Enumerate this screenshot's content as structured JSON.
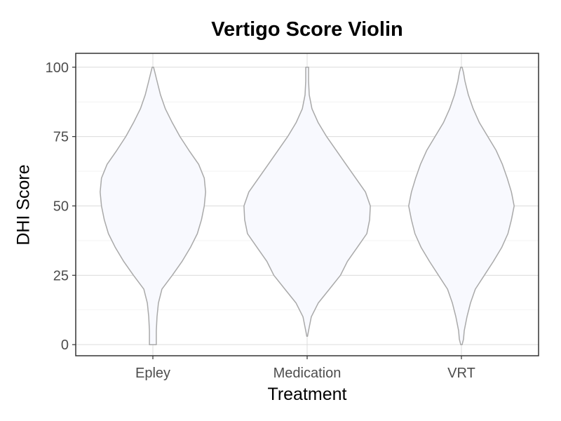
{
  "chart_data": {
    "type": "violin",
    "title": "Vertigo Score Violin",
    "xlabel": "Treatment",
    "ylabel": "DHI Score",
    "ylim": [
      -4,
      105
    ],
    "yticks": [
      0,
      25,
      50,
      75,
      100
    ],
    "grid": true,
    "categories": [
      "Epley",
      "Medication",
      "VRT"
    ],
    "fill_color": "#f8f9fe",
    "outline_color": "#a9a9a9",
    "violins": [
      {
        "category": "Epley",
        "y": [
          0,
          2,
          5,
          10,
          15,
          20,
          25,
          30,
          35,
          40,
          45,
          50,
          55,
          60,
          65,
          70,
          75,
          80,
          85,
          90,
          95,
          98,
          100
        ],
        "half_width": [
          0.05,
          0.05,
          0.05,
          0.06,
          0.08,
          0.13,
          0.28,
          0.42,
          0.54,
          0.64,
          0.7,
          0.74,
          0.76,
          0.74,
          0.66,
          0.52,
          0.39,
          0.28,
          0.18,
          0.11,
          0.06,
          0.03,
          0.01
        ]
      },
      {
        "category": "Medication",
        "y": [
          3,
          5,
          10,
          15,
          20,
          25,
          30,
          35,
          40,
          45,
          50,
          55,
          60,
          65,
          70,
          75,
          80,
          85,
          90,
          95,
          98,
          100
        ],
        "half_width": [
          0.005,
          0.02,
          0.06,
          0.16,
          0.32,
          0.48,
          0.58,
          0.72,
          0.86,
          0.9,
          0.91,
          0.84,
          0.7,
          0.56,
          0.42,
          0.28,
          0.16,
          0.07,
          0.03,
          0.02,
          0.02,
          0.02
        ]
      },
      {
        "category": "VRT",
        "y": [
          0,
          2,
          5,
          10,
          15,
          20,
          25,
          30,
          35,
          40,
          45,
          50,
          55,
          60,
          65,
          70,
          75,
          80,
          85,
          90,
          95,
          98,
          100
        ],
        "half_width": [
          0.01,
          0.03,
          0.04,
          0.08,
          0.13,
          0.2,
          0.33,
          0.46,
          0.58,
          0.67,
          0.72,
          0.76,
          0.72,
          0.66,
          0.59,
          0.5,
          0.38,
          0.26,
          0.17,
          0.1,
          0.05,
          0.03,
          0.01
        ]
      }
    ]
  }
}
